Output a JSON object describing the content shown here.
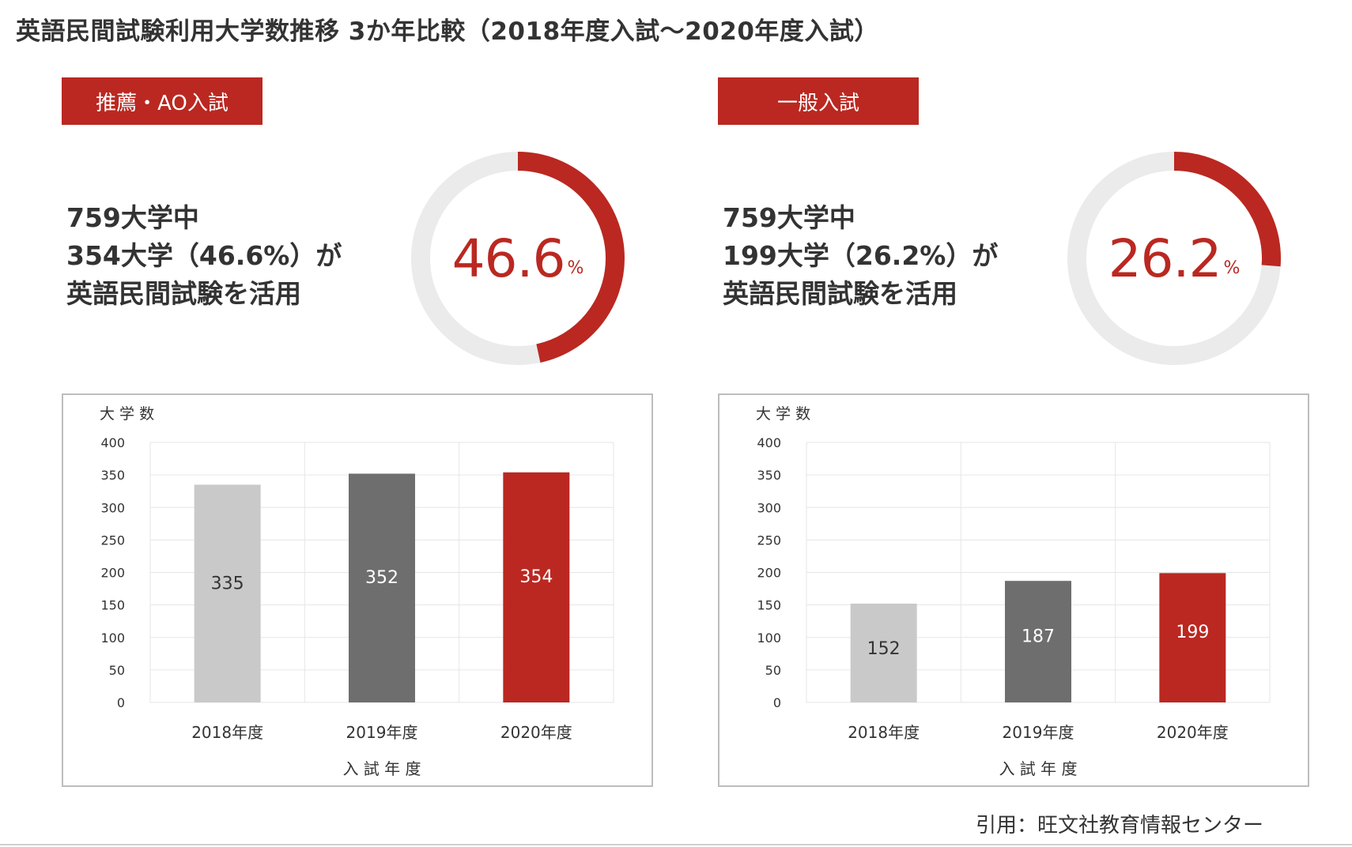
{
  "title": "英語民間試験利用大学数推移 3か年比較（2018年度入試〜2020年度入試）",
  "source": "引用：旺文社教育情報センター",
  "colors": {
    "accent": "#ba2821",
    "bar_2018": "#c9c9c9",
    "bar_2019": "#6e6e6e",
    "bar_2020": "#ba2821",
    "donut_track": "#ebebeb"
  },
  "panels": [
    {
      "tag": "推薦・AO入試",
      "desc": [
        "759大学中",
        "354大学（46.6%）が",
        "英語民間試験を活用"
      ],
      "percent": "46.6",
      "percent_unit": "%"
    },
    {
      "tag": "一般入試",
      "desc": [
        "759大学中",
        "199大学（26.2%）が",
        "英語民間試験を活用"
      ],
      "percent": "26.2",
      "percent_unit": "%"
    }
  ],
  "chart_data": [
    {
      "type": "bar",
      "donut_percent": 46.6,
      "categories": [
        "2018年度",
        "2019年度",
        "2020年度"
      ],
      "values": [
        335,
        352,
        354
      ],
      "value_labels": [
        "335",
        "352",
        "354"
      ],
      "ylabel": "大 学 数",
      "xlabel": "入 試 年 度",
      "ylim": [
        0,
        400
      ],
      "yticks": [
        "0",
        "50",
        "100",
        "150",
        "200",
        "250",
        "300",
        "350",
        "400"
      ],
      "grid": true
    },
    {
      "type": "bar",
      "donut_percent": 26.2,
      "categories": [
        "2018年度",
        "2019年度",
        "2020年度"
      ],
      "values": [
        152,
        187,
        199
      ],
      "value_labels": [
        "152",
        "187",
        "199"
      ],
      "ylabel": "大 学 数",
      "xlabel": "入 試 年 度",
      "ylim": [
        0,
        400
      ],
      "yticks": [
        "0",
        "50",
        "100",
        "150",
        "200",
        "250",
        "300",
        "350",
        "400"
      ],
      "grid": true
    }
  ]
}
